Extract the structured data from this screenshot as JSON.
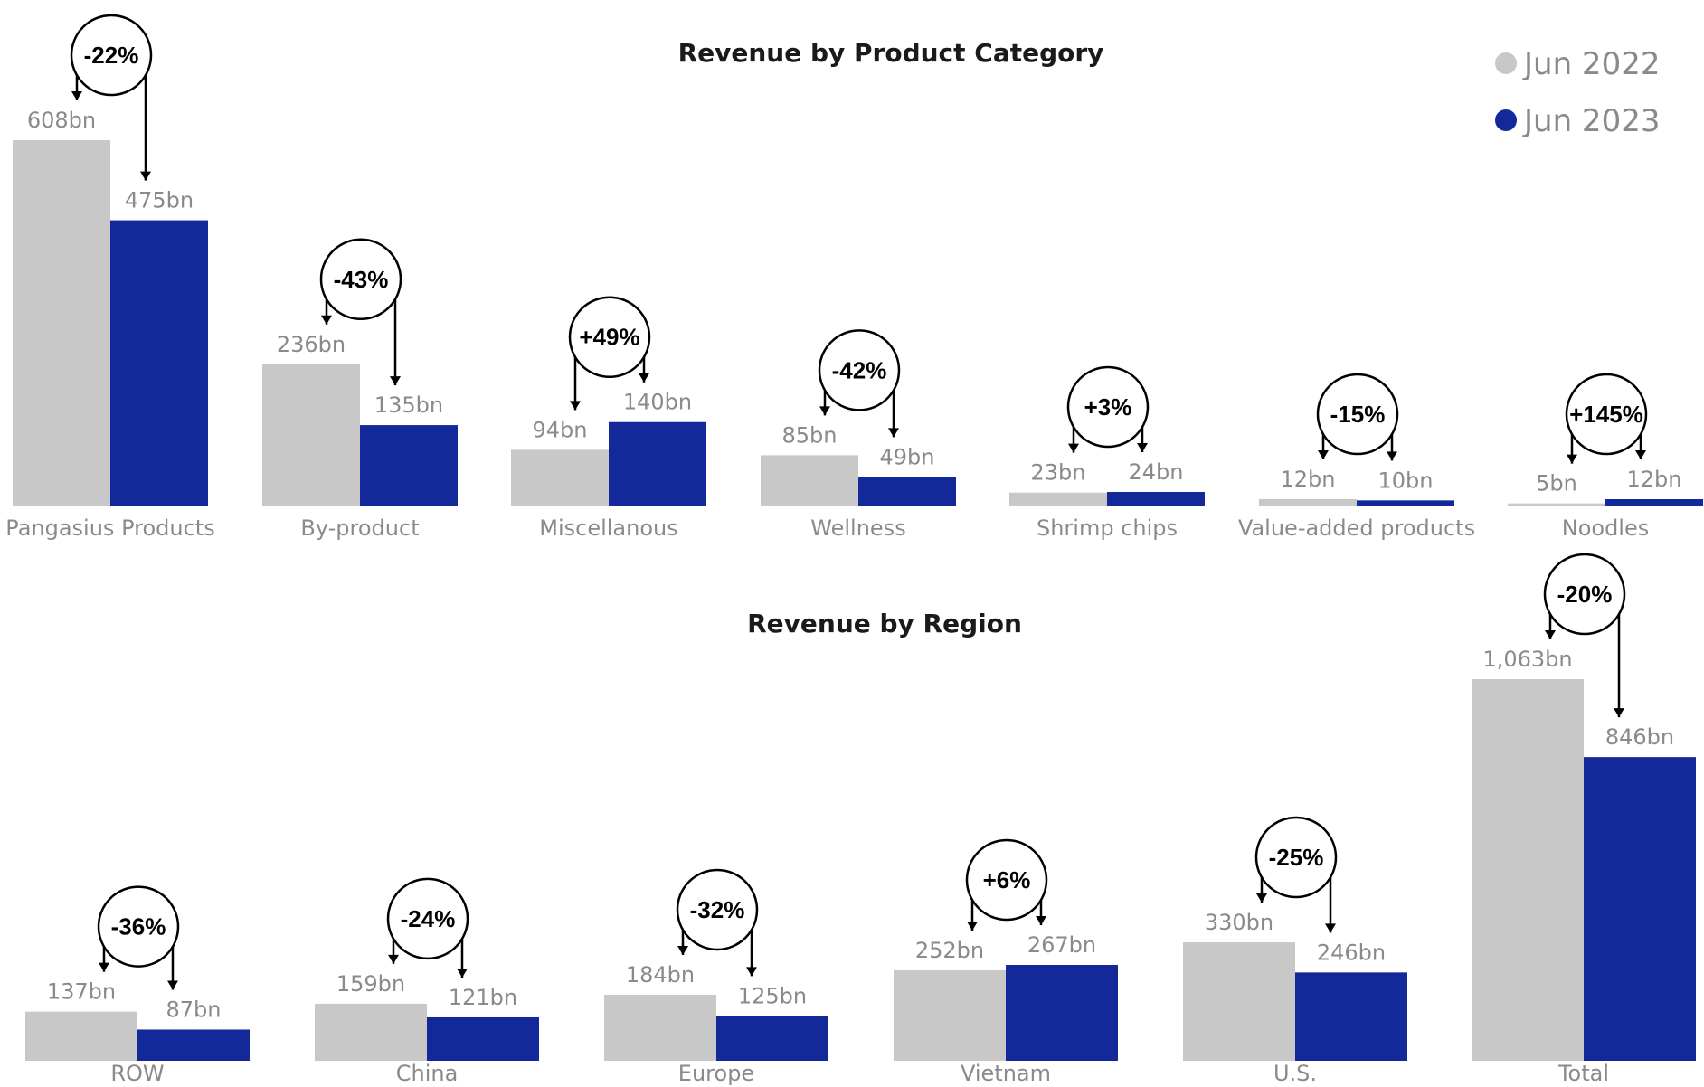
{
  "chart_data": [
    {
      "type": "bar",
      "title": "Revenue by Product Category",
      "categories": [
        "Pangasius Products",
        "By-product",
        "Miscellanous",
        "Wellness",
        "Shrimp chips",
        "Value-added products",
        "Noodles"
      ],
      "series": [
        {
          "name": "Jun 2022",
          "values": [
            608,
            236,
            94,
            85,
            23,
            12,
            5
          ],
          "labels": [
            "608bn",
            "236bn",
            "94bn",
            "85bn",
            "23bn",
            "12bn",
            "5bn"
          ]
        },
        {
          "name": "Jun 2023",
          "values": [
            475,
            135,
            140,
            49,
            24,
            10,
            12
          ],
          "labels": [
            "475bn",
            "135bn",
            "140bn",
            "49bn",
            "24bn",
            "10bn",
            "12bn"
          ]
        }
      ],
      "changes": [
        "-22%",
        "-43%",
        "+49%",
        "-42%",
        "+3%",
        "-15%",
        "+145%"
      ],
      "unit": "bn",
      "ylim": [
        0,
        608
      ]
    },
    {
      "type": "bar",
      "title": "Revenue by Region",
      "categories": [
        "ROW",
        "China",
        "Europe",
        "Vietnam",
        "U.S.",
        "Total"
      ],
      "series": [
        {
          "name": "Jun 2022",
          "values": [
            137,
            159,
            184,
            252,
            330,
            1063
          ],
          "labels": [
            "137bn",
            "159bn",
            "184bn",
            "252bn",
            "330bn",
            "1,063bn"
          ]
        },
        {
          "name": "Jun 2023",
          "values": [
            87,
            121,
            125,
            267,
            246,
            846
          ],
          "labels": [
            "87bn",
            "121bn",
            "125bn",
            "267bn",
            "246bn",
            "846bn"
          ]
        }
      ],
      "changes": [
        "-36%",
        "-24%",
        "-32%",
        "+6%",
        "-25%",
        "-20%"
      ],
      "unit": "bn",
      "ylim": [
        0,
        1063
      ]
    }
  ],
  "legend": {
    "items": [
      {
        "label": "Jun 2022",
        "color": "#c8c8c8"
      },
      {
        "label": "Jun 2023",
        "color": "#13299a"
      }
    ]
  }
}
